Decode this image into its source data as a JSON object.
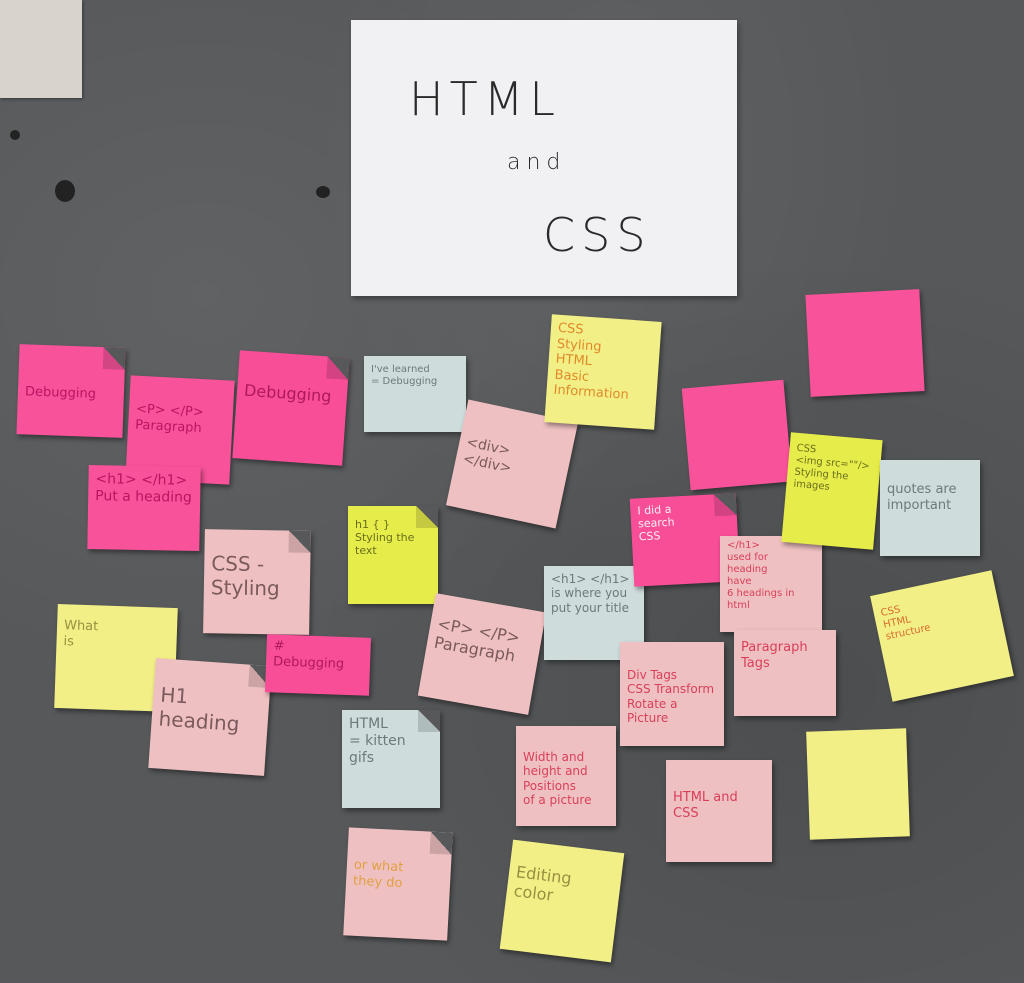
{
  "title_sheet": {
    "line1": "HTML",
    "line2": "and",
    "line3": "CSS"
  },
  "notes": [
    {
      "id": "debugging-1",
      "color": "pink",
      "lines": [
        "Debugging"
      ]
    },
    {
      "id": "p-paragraph",
      "color": "pink",
      "lines": [
        "<P> </P>",
        "Paragraph"
      ]
    },
    {
      "id": "debugging-2",
      "color": "hotpink",
      "lines": [
        "Debugging"
      ]
    },
    {
      "id": "h1-heading-pink",
      "color": "pink",
      "lines": [
        "<h1> </h1>",
        "Put a heading"
      ]
    },
    {
      "id": "css-styling",
      "color": "blush",
      "lines": [
        "CSS -",
        "Styling"
      ]
    },
    {
      "id": "what-is",
      "color": "yellow",
      "lines": [
        "What",
        "is"
      ]
    },
    {
      "id": "h1-heading",
      "color": "blush",
      "lines": [
        "H1",
        "heading"
      ]
    },
    {
      "id": "debugging-hash",
      "color": "hotpink",
      "lines": [
        "#",
        "Debugging"
      ]
    },
    {
      "id": "learned-debugging",
      "color": "mint",
      "lines": [
        "I've learned",
        "= Debugging"
      ]
    },
    {
      "id": "h1-styling-text",
      "color": "lime",
      "lines": [
        "h1 { }",
        "Styling the text"
      ]
    },
    {
      "id": "div-div",
      "color": "blush",
      "lines": [
        "<div> </div>"
      ]
    },
    {
      "id": "p-paragraph-2",
      "color": "blush",
      "lines": [
        "<P> </P>",
        "Paragraph"
      ]
    },
    {
      "id": "html-kitten",
      "color": "mint",
      "lines": [
        "HTML",
        "= kitten",
        "gifs"
      ]
    },
    {
      "id": "what-they-do",
      "color": "blush",
      "lines": [
        "or what",
        "they do"
      ]
    },
    {
      "id": "css-styling-html",
      "color": "yellow",
      "lines": [
        "CSS",
        "Styling",
        "HTML",
        "Basic Information"
      ]
    },
    {
      "id": "h1-where",
      "color": "mint",
      "lines": [
        "<h1> </h1>",
        "is where you",
        "put your title"
      ]
    },
    {
      "id": "width-height",
      "color": "blush",
      "lines": [
        "Width and",
        "height and",
        "Positions",
        "of a picture"
      ]
    },
    {
      "id": "editing-color",
      "color": "yellow",
      "lines": [
        "Editing",
        "color"
      ]
    },
    {
      "id": "pink-square-1",
      "color": "pink",
      "lines": [
        ""
      ]
    },
    {
      "id": "i-did-search",
      "color": "hotpink",
      "lines": [
        "I did a",
        "search",
        "CSS"
      ]
    },
    {
      "id": "div-tags",
      "color": "blush",
      "lines": [
        "Div Tags",
        "CSS Transform",
        "Rotate a",
        "Picture"
      ]
    },
    {
      "id": "html-and-css",
      "color": "blush",
      "lines": [
        "HTML and",
        "CSS"
      ]
    },
    {
      "id": "h1-used-heading",
      "color": "blush",
      "lines": [
        "</h1>",
        "used for",
        "heading",
        "have",
        "6 headings in",
        "html"
      ]
    },
    {
      "id": "paragraph-tags",
      "color": "blush",
      "lines": [
        "Paragraph",
        "Tags"
      ]
    },
    {
      "id": "pink-square-2",
      "color": "pink",
      "lines": [
        ""
      ]
    },
    {
      "id": "css-img-src",
      "color": "lime",
      "lines": [
        "CSS",
        "<img src=\"\"/>",
        "Styling the",
        "images"
      ]
    },
    {
      "id": "quotes-important",
      "color": "mint",
      "lines": [
        "quotes are",
        "important"
      ]
    },
    {
      "id": "css-html-structure",
      "color": "yellow",
      "lines": [
        "CSS",
        "HTML",
        "structure"
      ]
    },
    {
      "id": "yellow-small",
      "color": "yellow",
      "lines": [
        ""
      ]
    }
  ]
}
